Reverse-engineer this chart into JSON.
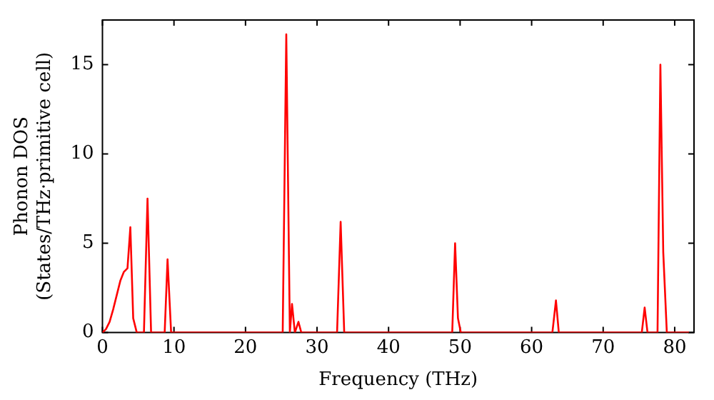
{
  "chart_data": {
    "type": "line",
    "xlabel": "Frequency (THz)",
    "ylabel": "Phonon DOS\n(States/THz·primitive cell)",
    "x": [
      0,
      0.5,
      1,
      1.5,
      2,
      2.5,
      3,
      3.5,
      3.9,
      4.3,
      4.8,
      5.8,
      6.3,
      6.8,
      8.7,
      9.1,
      9.6,
      25.2,
      25.7,
      26.2,
      26.5,
      26.9,
      27.4,
      27.8,
      32.8,
      33.3,
      33.8,
      48.9,
      49.3,
      49.7,
      50.1,
      62.9,
      63.4,
      63.8,
      75.4,
      75.8,
      76.2,
      77.6,
      78.0,
      78.4,
      78.9,
      82.0
    ],
    "series": [
      {
        "color": "#ff0000",
        "values": [
          0,
          0.2,
          0.6,
          1.3,
          2.1,
          2.9,
          3.4,
          3.6,
          5.9,
          0.8,
          0,
          0,
          7.5,
          0,
          0,
          4.1,
          0,
          0,
          16.7,
          0,
          1.6,
          0,
          0.6,
          0,
          0,
          6.2,
          0,
          0,
          5.0,
          0.8,
          0,
          0,
          1.8,
          0,
          0,
          1.4,
          0,
          0,
          15.0,
          4.5,
          0,
          0
        ]
      }
    ],
    "xlim": [
      0,
      82.7
    ],
    "xticks": [
      0,
      10,
      20,
      30,
      40,
      50,
      60,
      70,
      80
    ],
    "ylim": [
      0,
      17.5
    ],
    "yticks": [
      0,
      5,
      10,
      15
    ],
    "grid": false,
    "legend": false,
    "marker": "none",
    "line_style": "solid"
  }
}
